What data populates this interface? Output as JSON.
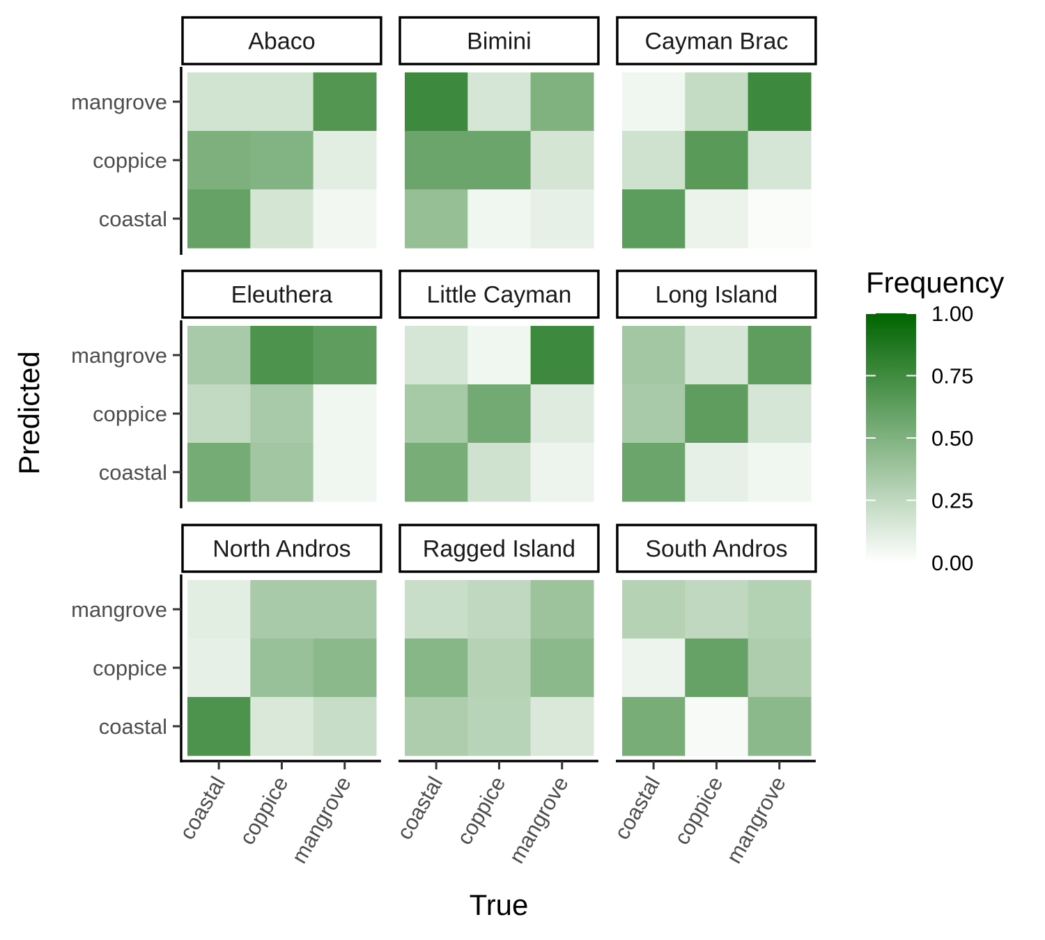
{
  "chart_data": {
    "type": "heatmap",
    "xlabel": "True",
    "ylabel": "Predicted",
    "x_categories": [
      "coastal",
      "coppice",
      "mangrove"
    ],
    "y_categories": [
      "coastal",
      "coppice",
      "mangrove"
    ],
    "legend": {
      "title": "Frequency",
      "ticks": [
        "0.00",
        "0.25",
        "0.50",
        "0.75",
        "1.00"
      ],
      "range": [
        0,
        1
      ],
      "low_color": "#ffffff",
      "high_color": "#006400",
      "placement": "right"
    },
    "facets": [
      {
        "name": "Abaco",
        "values": {
          "mangrove": [
            0.18,
            0.18,
            0.68
          ],
          "coppice": [
            0.51,
            0.49,
            0.11
          ],
          "coastal": [
            0.6,
            0.17,
            0.05
          ]
        }
      },
      {
        "name": "Bimini",
        "values": {
          "mangrove": [
            0.76,
            0.16,
            0.5
          ],
          "coppice": [
            0.58,
            0.58,
            0.17
          ],
          "coastal": [
            0.41,
            0.06,
            0.1
          ]
        }
      },
      {
        "name": "Cayman Brac",
        "values": {
          "mangrove": [
            0.06,
            0.23,
            0.76
          ],
          "coppice": [
            0.19,
            0.65,
            0.16
          ],
          "coastal": [
            0.64,
            0.08,
            0.02
          ]
        }
      },
      {
        "name": "Eleuthera",
        "values": {
          "mangrove": [
            0.34,
            0.7,
            0.63
          ],
          "coppice": [
            0.24,
            0.34,
            0.06
          ],
          "coastal": [
            0.54,
            0.37,
            0.06
          ]
        }
      },
      {
        "name": "Little Cayman",
        "values": {
          "mangrove": [
            0.16,
            0.06,
            0.76
          ],
          "coppice": [
            0.35,
            0.55,
            0.13
          ],
          "coastal": [
            0.53,
            0.19,
            0.07
          ]
        }
      },
      {
        "name": "Long Island",
        "values": {
          "mangrove": [
            0.36,
            0.16,
            0.63
          ],
          "coppice": [
            0.34,
            0.63,
            0.16
          ],
          "coastal": [
            0.58,
            0.1,
            0.06
          ]
        }
      },
      {
        "name": "North Andros",
        "values": {
          "mangrove": [
            0.11,
            0.34,
            0.34
          ],
          "coppice": [
            0.1,
            0.4,
            0.45
          ],
          "coastal": [
            0.7,
            0.15,
            0.22
          ]
        }
      },
      {
        "name": "Ragged Island",
        "values": {
          "mangrove": [
            0.21,
            0.25,
            0.39
          ],
          "coppice": [
            0.47,
            0.29,
            0.45
          ],
          "coastal": [
            0.32,
            0.28,
            0.15
          ]
        }
      },
      {
        "name": "South Andros",
        "values": {
          "mangrove": [
            0.29,
            0.25,
            0.3
          ],
          "coppice": [
            0.07,
            0.6,
            0.32
          ],
          "coastal": [
            0.53,
            0.03,
            0.45
          ]
        }
      }
    ]
  }
}
